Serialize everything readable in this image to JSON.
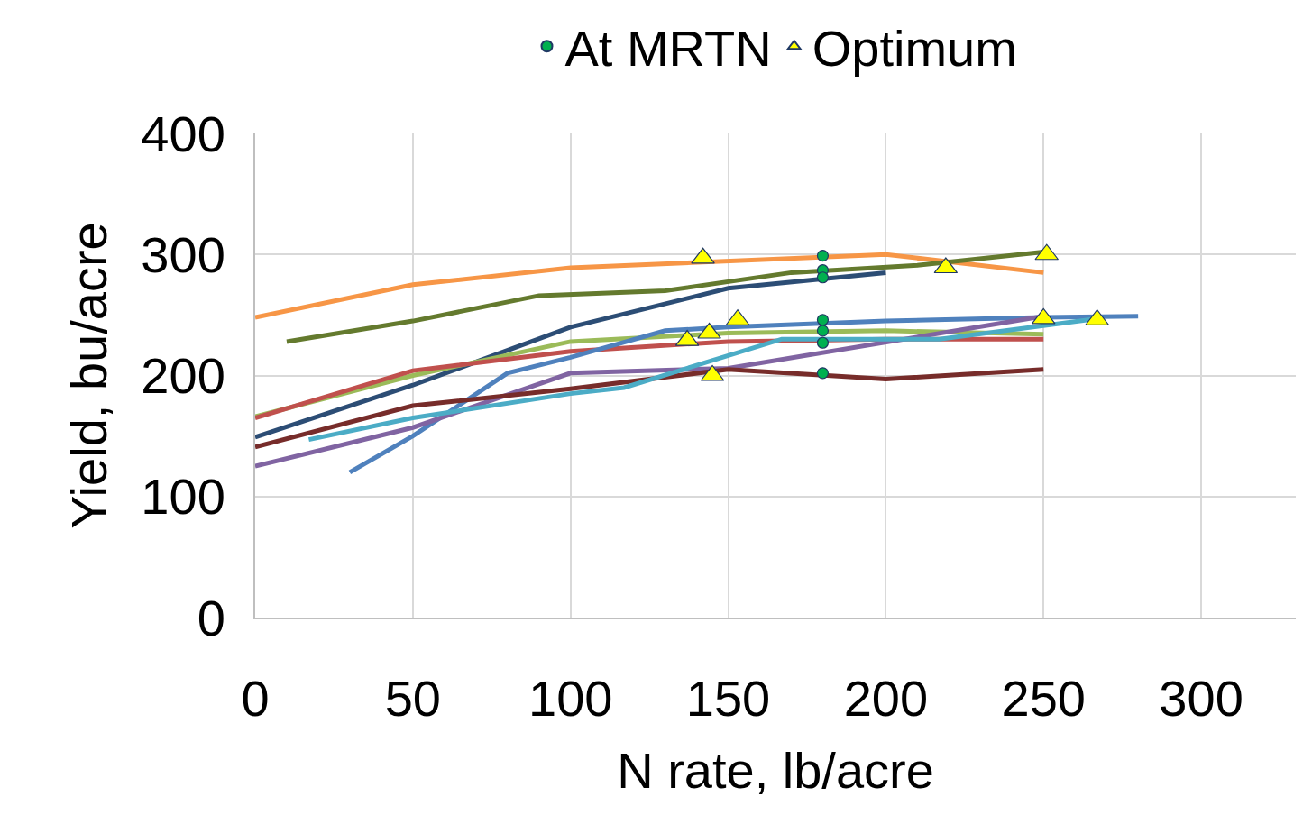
{
  "chart_data": {
    "type": "line",
    "xlabel": "N rate, lb/acre",
    "ylabel": "Yield, bu/acre",
    "xlim": [
      0,
      330
    ],
    "xticks": [
      0,
      50,
      100,
      150,
      200,
      250,
      300
    ],
    "ylim": [
      0,
      400
    ],
    "yticks": [
      0,
      100,
      200,
      300,
      400
    ],
    "grid": true,
    "legend": "top",
    "marker": "none",
    "line_style": "solid",
    "series": [
      {
        "color": "#f79646",
        "x": [
          0,
          50,
          100,
          200,
          250
        ],
        "values": [
          248,
          275,
          289,
          300,
          285
        ]
      },
      {
        "color": "#647a2e",
        "x": [
          10,
          50,
          90,
          130,
          170,
          210,
          250
        ],
        "values": [
          228,
          245,
          266,
          270,
          285,
          291,
          302
        ]
      },
      {
        "color": "#2c4d75",
        "x": [
          0,
          50,
          100,
          150,
          200
        ],
        "values": [
          149,
          192,
          240,
          272,
          285
        ]
      },
      {
        "color": "#9bbb59",
        "x": [
          0,
          50,
          100,
          150,
          200,
          250
        ],
        "values": [
          166,
          200,
          228,
          235,
          237,
          234
        ]
      },
      {
        "color": "#c0504d",
        "x": [
          0,
          50,
          100,
          150,
          200,
          250
        ],
        "values": [
          165,
          204,
          220,
          228,
          230,
          230
        ]
      },
      {
        "color": "#4f81bd",
        "x": [
          30,
          50,
          80,
          100,
          130,
          150,
          200,
          250,
          280
        ],
        "values": [
          120,
          150,
          202,
          215,
          237,
          240,
          245,
          248,
          249
        ]
      },
      {
        "color": "#8064a2",
        "x": [
          0,
          50,
          100,
          150,
          250
        ],
        "values": [
          125,
          157,
          202,
          206,
          249
        ]
      },
      {
        "color": "#772c2a",
        "x": [
          0,
          50,
          100,
          150,
          200,
          250
        ],
        "values": [
          141,
          175,
          189,
          205,
          197,
          205
        ]
      },
      {
        "color": "#4bacc6",
        "x": [
          17,
          50,
          100,
          117,
          167,
          217,
          267
        ],
        "values": [
          147,
          165,
          185,
          190,
          230,
          230,
          247
        ]
      },
      {
        "type": "scatter",
        "name": "At MRTN",
        "marker": "circle",
        "color": "#00b050",
        "x": [
          180,
          180,
          180,
          180,
          180,
          180,
          180
        ],
        "values": [
          299,
          287,
          281,
          246,
          237,
          227,
          202
        ]
      },
      {
        "type": "scatter",
        "name": "Optimum",
        "marker": "triangle",
        "color": "#ffff00",
        "x": [
          142,
          144,
          137,
          153,
          145,
          219,
          251,
          250,
          267
        ],
        "values": [
          297,
          235,
          229,
          246,
          200,
          289,
          300,
          247,
          246
        ]
      }
    ]
  }
}
